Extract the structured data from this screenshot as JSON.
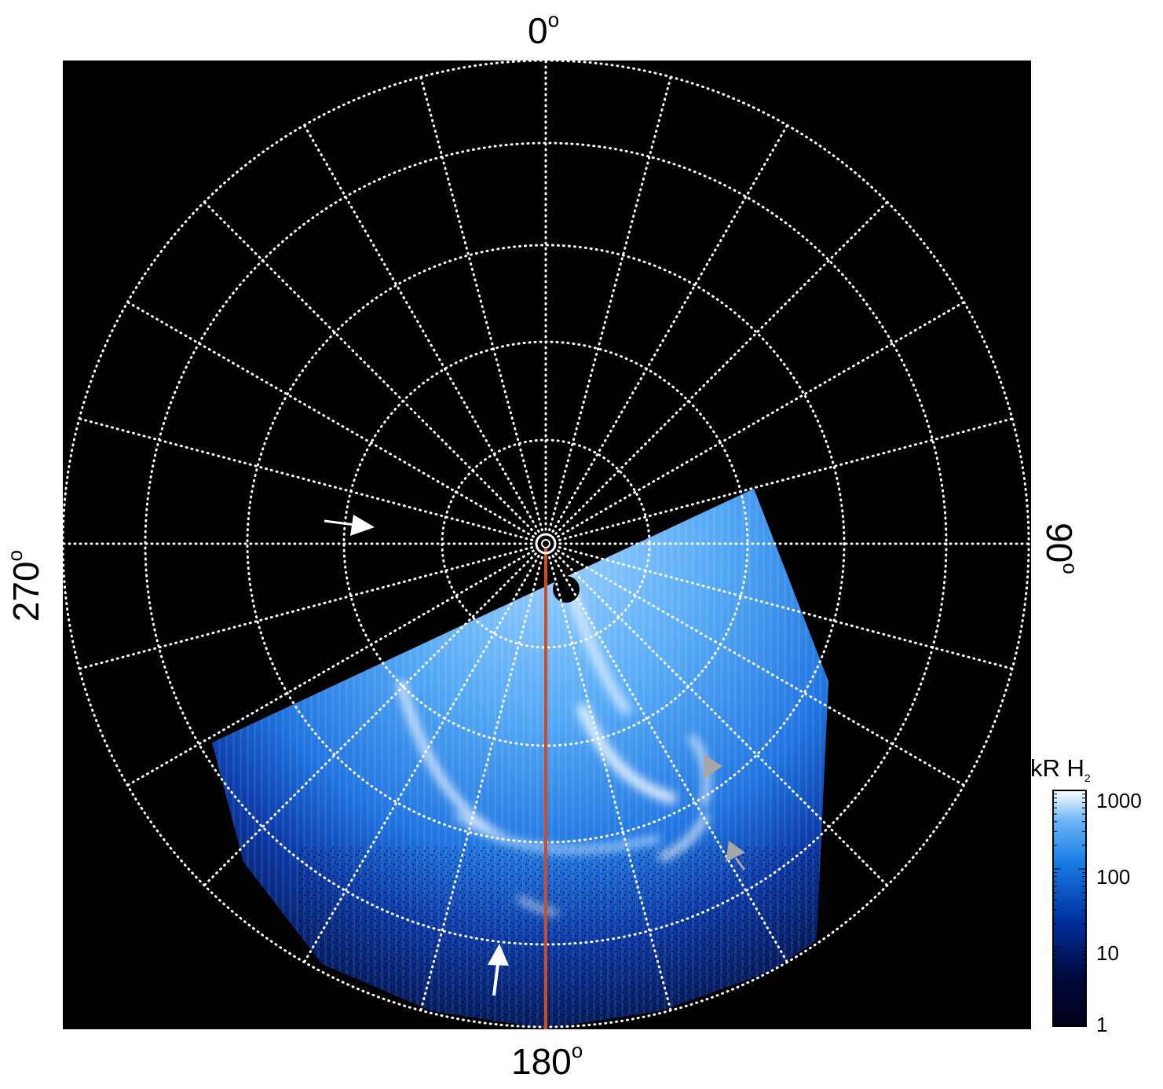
{
  "labels": {
    "top": "0",
    "bottom": "180",
    "left": "270",
    "right": "90",
    "degree_symbol": "o"
  },
  "colorbar": {
    "title": "kR H",
    "title_sub": "2",
    "ticks": [
      "1000",
      "100",
      "10",
      "1"
    ],
    "colors": [
      "#00001a",
      "#00083a",
      "#0030a0",
      "#1a7ee8",
      "#6ab4f4",
      "#ffffff"
    ]
  },
  "colors": {
    "background": "#000000",
    "grid": "#ffffff",
    "meridian_line": "#d44a1c",
    "white_arrow": "#ffffff",
    "grey_arrow": "#a6a6a6"
  }
}
